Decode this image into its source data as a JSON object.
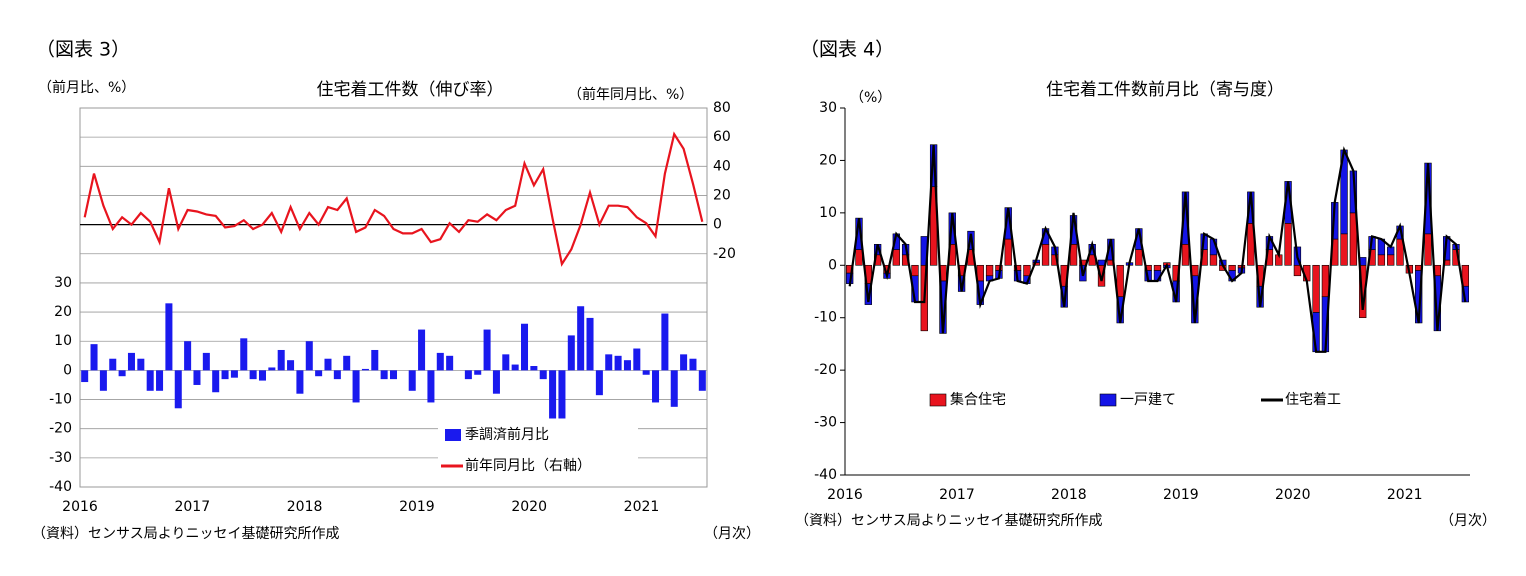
{
  "chart_data": [
    {
      "type": "combo",
      "figure_label": "（図表 3）",
      "title": "住宅着工件数（伸び率）",
      "y_label": "（前月比、%）",
      "y2_label": "（前年同月比、%）",
      "source": "（資料）センサス局よりニッセイ基礎研究所作成",
      "x_unit": "（月次）",
      "categories": [
        "2016",
        null,
        null,
        null,
        null,
        null,
        null,
        null,
        null,
        null,
        null,
        null,
        "2017",
        null,
        null,
        null,
        null,
        null,
        null,
        null,
        null,
        null,
        null,
        null,
        "2018",
        null,
        null,
        null,
        null,
        null,
        null,
        null,
        null,
        null,
        null,
        null,
        "2019",
        null,
        null,
        null,
        null,
        null,
        null,
        null,
        null,
        null,
        null,
        null,
        "2020",
        null,
        null,
        null,
        null,
        null,
        null,
        null,
        null,
        null,
        null,
        null,
        "2021",
        null,
        null,
        null,
        null,
        null,
        null
      ],
      "series": [
        {
          "name": "季調済前月比",
          "kind": "bar",
          "color": "#1a1aee",
          "axis": "y",
          "values": [
            -4,
            9,
            -7,
            4,
            -2,
            6,
            4,
            -7,
            -7,
            23,
            -13,
            10,
            -5,
            6,
            -7.5,
            -3,
            -2.5,
            11,
            -3,
            -3.5,
            1,
            7,
            3.5,
            -8,
            10,
            -2,
            4,
            -3,
            5,
            -11,
            0.5,
            7,
            -3,
            -3,
            0,
            -7,
            14,
            -11,
            6,
            5,
            0,
            -3,
            -1.5,
            14,
            -8,
            5.5,
            2,
            16,
            1.5,
            -3,
            -16.5,
            -16.5,
            12,
            22,
            18,
            -8.5,
            5.5,
            5,
            3.5,
            7.5,
            -1.5,
            -11,
            19.5,
            -12.5,
            5.5,
            4,
            -7
          ]
        },
        {
          "name": "前年同月比（右軸）",
          "kind": "line",
          "color": "#e8141e",
          "axis": "y2",
          "values": [
            5,
            35,
            13,
            -3,
            5,
            0,
            8,
            2,
            -12,
            25,
            -3,
            10,
            9,
            7,
            6,
            -2,
            -1,
            3,
            -3,
            0,
            8,
            -5,
            12,
            -3,
            8,
            0,
            12,
            10,
            18,
            -5,
            -2,
            10,
            6,
            -3,
            -6,
            -6,
            -3,
            -12,
            -10,
            1,
            -5,
            3,
            2,
            7,
            3,
            10,
            13,
            42,
            27,
            38,
            4,
            -27,
            -17,
            0,
            22,
            0,
            13,
            13,
            12,
            5,
            1,
            -8,
            35,
            62,
            52,
            28,
            2
          ]
        }
      ],
      "ylim": [
        -40,
        90
      ],
      "yticks": [
        -40,
        -30,
        -20,
        -10,
        0,
        10,
        20,
        30
      ],
      "y2lim": [
        -180,
        80
      ],
      "y2ticks": [
        -20,
        0,
        20,
        40,
        60,
        80
      ],
      "grid": true,
      "zero_line": "y2"
    },
    {
      "type": "stacked",
      "figure_label": "（図表 4）",
      "title": "住宅着工件数前月比（寄与度）",
      "y_label": "（%）",
      "source": "（資料）センサス局よりニッセイ基礎研究所作成",
      "x_unit": "（月次）",
      "categories": [
        "2016",
        null,
        null,
        null,
        null,
        null,
        null,
        null,
        null,
        null,
        null,
        null,
        "2017",
        null,
        null,
        null,
        null,
        null,
        null,
        null,
        null,
        null,
        null,
        null,
        "2018",
        null,
        null,
        null,
        null,
        null,
        null,
        null,
        null,
        null,
        null,
        null,
        "2019",
        null,
        null,
        null,
        null,
        null,
        null,
        null,
        null,
        null,
        null,
        null,
        "2020",
        null,
        null,
        null,
        null,
        null,
        null,
        null,
        null,
        null,
        null,
        null,
        "2021",
        null,
        null,
        null,
        null,
        null,
        null
      ],
      "series": [
        {
          "name": "集合住宅",
          "kind": "bar",
          "color": "#e8141e",
          "axis": "y",
          "values": [
            -1.5,
            3,
            -3.5,
            2,
            -1.5,
            3,
            2,
            -2,
            -12.5,
            15,
            -3,
            4,
            -2,
            3,
            -3,
            -2,
            -1,
            5,
            -1,
            -2,
            0.5,
            4,
            2,
            -4,
            4,
            1,
            2,
            -4,
            1,
            -6,
            0,
            3,
            -1,
            -1,
            0.5,
            -3,
            4,
            -2,
            3,
            2,
            -1,
            -1,
            -0.5,
            8,
            -4,
            3,
            2,
            8,
            -2,
            -3,
            -9,
            -6,
            5,
            6,
            10,
            -10,
            3,
            2,
            2,
            5,
            -1.5,
            -1,
            6,
            -2,
            1,
            3,
            -4
          ]
        },
        {
          "name": "一戸建て",
          "kind": "bar",
          "color": "#1414e6",
          "axis": "y",
          "values": [
            -2,
            6,
            -4,
            2,
            -1,
            3,
            2,
            -5,
            5.5,
            8,
            -10,
            6,
            -3,
            3.5,
            -4.5,
            -1,
            -1.5,
            6,
            -2,
            -1.5,
            0.5,
            3,
            1.5,
            -4,
            5.5,
            -3,
            2,
            1,
            4,
            -5,
            0.5,
            4,
            -2,
            -2,
            -0.5,
            -4,
            10,
            -9,
            3,
            3,
            1,
            -2,
            -1,
            6,
            -4,
            2.5,
            0,
            8,
            3.5,
            0,
            -7.5,
            -10.5,
            7,
            16,
            8,
            1.5,
            2.5,
            3,
            1.5,
            2.5,
            0,
            -10,
            13.5,
            -10.5,
            4.5,
            1,
            -3
          ]
        },
        {
          "name": "住宅着工",
          "kind": "line",
          "color": "#000000",
          "axis": "y",
          "values": [
            -4,
            9,
            -7,
            4,
            -2,
            6,
            4,
            -7,
            -7,
            23,
            -13,
            10,
            -5,
            6,
            -7.5,
            -3,
            -2.5,
            11,
            -3,
            -3.5,
            1,
            7,
            3.5,
            -8,
            10,
            -2,
            4,
            -3,
            5,
            -11,
            0.5,
            7,
            -3,
            -3,
            0,
            -7,
            14,
            -11,
            6,
            5,
            0,
            -3,
            -1.5,
            14,
            -8,
            5.5,
            2,
            16,
            1.5,
            -3,
            -16.5,
            -16.5,
            12,
            22,
            18,
            -8.5,
            5.5,
            5,
            3.5,
            7.5,
            -1.5,
            -11,
            19.5,
            -12.5,
            5.5,
            4,
            -7
          ]
        }
      ],
      "ylim": [
        -40,
        30
      ],
      "yticks": [
        -40,
        -30,
        -20,
        -10,
        0,
        10,
        20,
        30
      ],
      "grid": false
    }
  ]
}
